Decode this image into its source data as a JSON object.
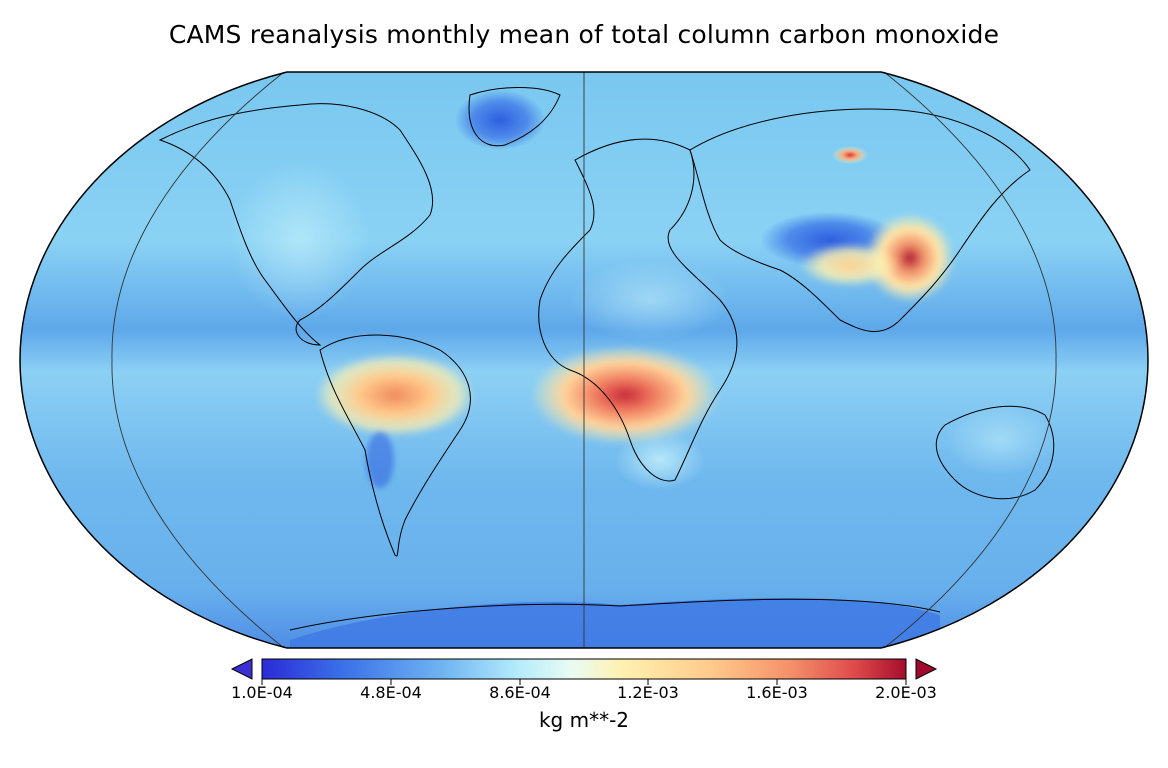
{
  "title": "CAMS reanalysis monthly mean of total column carbon monoxide",
  "projection": "Robinson",
  "colorbar": {
    "ticks": [
      "1.0E-04",
      "4.8E-04",
      "8.6E-04",
      "1.2E-03",
      "1.6E-03",
      "2.0E-03"
    ],
    "tick_values": [
      0.0001,
      0.00048,
      0.00086,
      0.0012,
      0.0016,
      0.002
    ],
    "units": "kg m**-2",
    "extend": "both",
    "colors": [
      "#2b2bd6",
      "#3a6ee8",
      "#6fb4f2",
      "#b6ecfb",
      "#e9fbf3",
      "#fff1b0",
      "#ffc98a",
      "#f5906a",
      "#df4a4c",
      "#a50e2c"
    ],
    "under_color": "#3a2fd0",
    "over_color": "#a00a2a"
  },
  "colors": {
    "ocean_base": "#7cc8f0",
    "land_outline": "#000000",
    "grid_line": "#333333"
  },
  "chart_data": {
    "type": "heatmap",
    "title": "CAMS reanalysis monthly mean of total column carbon monoxide",
    "variable": "total column carbon monoxide",
    "units": "kg m**-2",
    "value_range": [
      0.0001,
      0.002
    ],
    "background_value": 0.0007,
    "hotspots": [
      {
        "region": "Central Africa",
        "value": 0.0019
      },
      {
        "region": "Amazon Basin",
        "value": 0.0014
      },
      {
        "region": "Eastern China",
        "value": 0.0019
      },
      {
        "region": "Northern India",
        "value": 0.0012
      },
      {
        "region": "Siberia",
        "value": 0.0016
      }
    ],
    "lows": [
      {
        "region": "Tibetan Plateau",
        "value": 0.0004
      },
      {
        "region": "Antarctica",
        "value": 0.0004
      },
      {
        "region": "Greenland",
        "value": 0.0005
      }
    ]
  }
}
